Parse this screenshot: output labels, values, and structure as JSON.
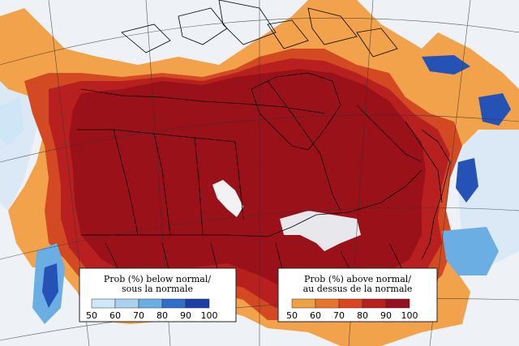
{
  "legend_below": {
    "title_line1": "Prob (%) below normal/",
    "title_line2": "sous la normale",
    "ticks": [
      "50",
      "60",
      "70",
      "80",
      "90",
      "100"
    ],
    "colors": [
      "#cfe8f7",
      "#a9d2f0",
      "#6aaee3",
      "#2f6fc9",
      "#1b3fa6"
    ]
  },
  "legend_above": {
    "title_line1": "Prob (%) above normal/",
    "title_line2": "au dessus de la normale",
    "ticks": [
      "50",
      "60",
      "70",
      "80",
      "90",
      "100"
    ],
    "colors": [
      "#f1a043",
      "#e8742b",
      "#d9461f",
      "#b81f1d",
      "#96101d"
    ]
  },
  "map_colors": {
    "background": "#eef1f6",
    "water_light": "#dbe8f5",
    "above_50": "#f2a24a",
    "above_60": "#e5742c",
    "above_70": "#d34a22",
    "above_80": "#b82020",
    "above_90": "#9a1119",
    "below_50": "#cfe6f6",
    "below_70": "#6aaee3",
    "below_90": "#2452b5"
  }
}
